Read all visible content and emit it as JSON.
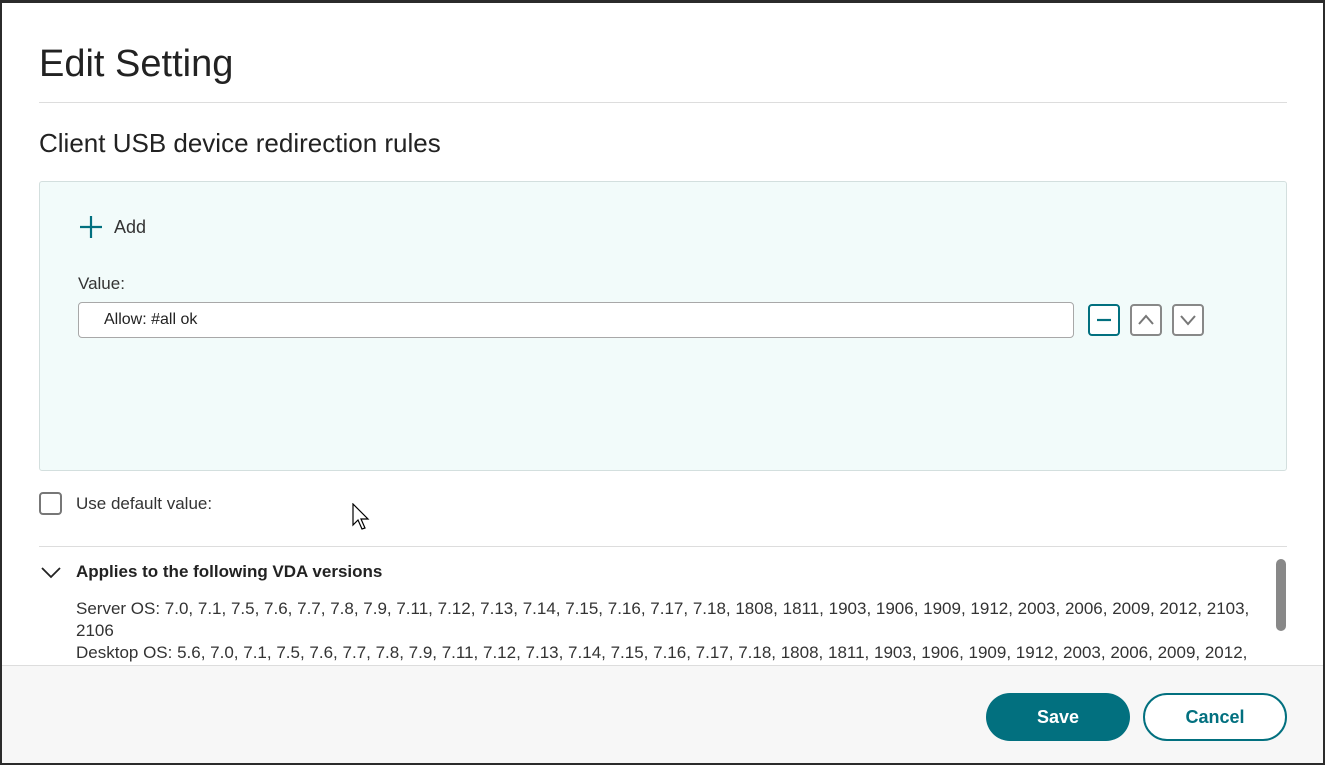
{
  "dialog": {
    "title": "Edit Setting",
    "setting_name": "Client USB device redirection rules"
  },
  "editor": {
    "add_label": "Add",
    "value_label": "Value:",
    "values": [
      "Allow: #all ok"
    ],
    "accent_color": "#02707f"
  },
  "default": {
    "label": "Use default value:",
    "checked": false
  },
  "applies": {
    "heading": "Applies to the following VDA versions",
    "expanded": true,
    "server": "Server OS: 7.0, 7.1, 7.5, 7.6, 7.7, 7.8, 7.9, 7.11, 7.12, 7.13, 7.14, 7.15, 7.16, 7.17, 7.18, 1808, 1811, 1903, 1906, 1909, 1912, 2003, 2006, 2009, 2012, 2103, 2106",
    "desktop": "Desktop OS: 5.6, 7.0, 7.1, 7.5, 7.6, 7.7, 7.8, 7.9, 7.11, 7.12, 7.13, 7.14, 7.15, 7.16, 7.17, 7.18, 1808, 1811, 1903, 1906, 1909, 1912, 2003, 2006, 2009, 2012,"
  },
  "footer": {
    "save_label": "Save",
    "cancel_label": "Cancel"
  }
}
